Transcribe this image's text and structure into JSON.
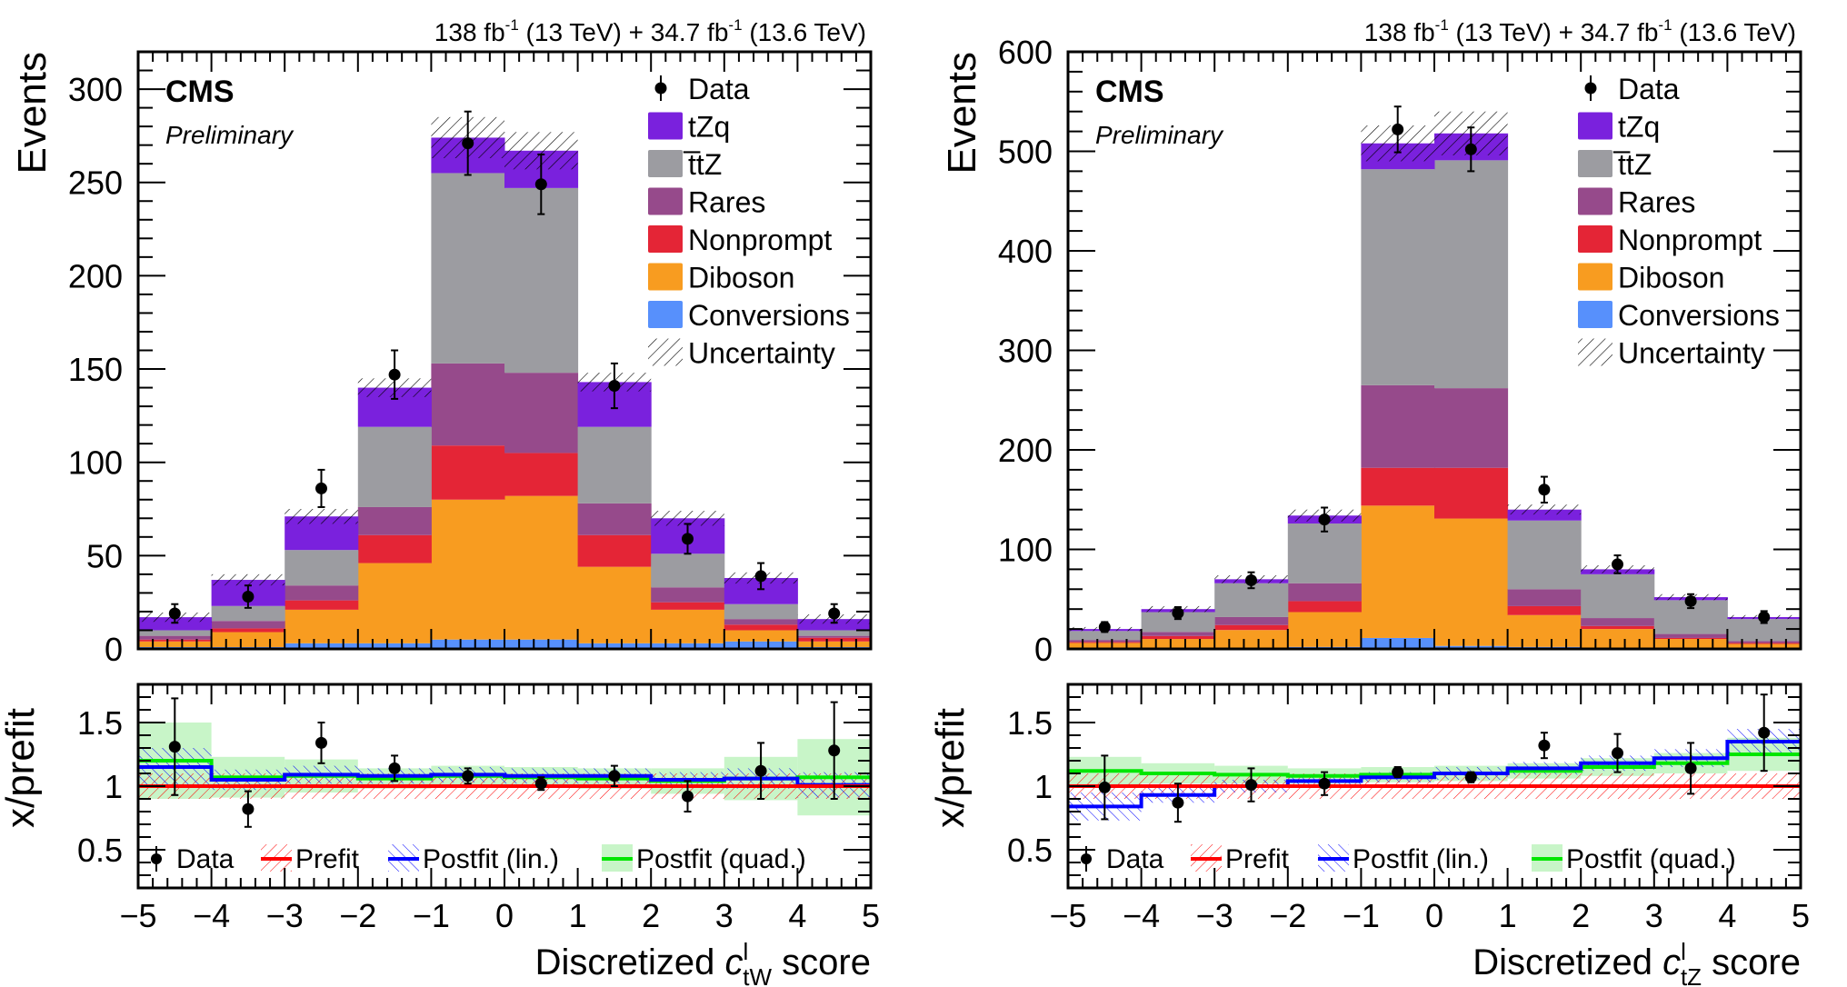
{
  "chart_data": [
    {
      "type": "bar",
      "stacked": true,
      "lumi_label": "138 fb^-1 (13 TeV) + 34.7 fb^-1 (13.6 TeV)",
      "lumi_parts": [
        "138 fb",
        "-1",
        " (13 TeV) + 34.7 fb",
        "-1",
        " (13.6 TeV)"
      ],
      "experiment": "CMS",
      "status": "Preliminary",
      "ylabel": "Events",
      "ratio_ylabel": "x/prefit",
      "xlabel_prefix": "Discretized ",
      "xlabel_symbol": "c",
      "xlabel_sup": "l",
      "xlabel_sub": "tW",
      "xlabel_suffix": " score",
      "xlabel": "Discretized c^l_tW score",
      "xlim": [
        -5,
        5
      ],
      "x_ticks": [
        "−5",
        "−4",
        "−3",
        "−2",
        "−1",
        "0",
        "1",
        "2",
        "3",
        "4",
        "5"
      ],
      "ylim": [
        0,
        320
      ],
      "y_ticks": [
        0,
        50,
        100,
        150,
        200,
        250,
        300
      ],
      "y_minor_step": 10,
      "ratio_ylim": [
        0.2,
        1.8
      ],
      "ratio_y_ticks": [
        "0.5",
        "1",
        "1.5"
      ],
      "bin_edges": [
        -5,
        -4,
        -3,
        -2,
        -1,
        0,
        1,
        2,
        3,
        4,
        5
      ],
      "series": [
        {
          "name": "Conversions",
          "color": "#5790fc",
          "values": [
            1,
            1,
            3,
            3,
            5,
            5,
            3,
            3,
            4,
            1
          ]
        },
        {
          "name": "Diboson",
          "color": "#f89c20",
          "values": [
            3,
            8,
            18,
            43,
            75,
            77,
            41,
            18,
            6,
            3
          ]
        },
        {
          "name": "Nonprompt",
          "color": "#e42536",
          "values": [
            1,
            2,
            5,
            15,
            29,
            23,
            17,
            4,
            3,
            2
          ]
        },
        {
          "name": "Rares",
          "color": "#964a8b",
          "values": [
            2,
            4,
            8,
            15,
            44,
            43,
            17,
            8,
            3,
            1
          ]
        },
        {
          "name": "t̅tZ",
          "color": "#9c9ca1",
          "values": [
            3,
            8,
            19,
            43,
            102,
            99,
            41,
            18,
            8,
            3
          ]
        },
        {
          "name": "tZq",
          "color": "#7a21dd",
          "values": [
            7,
            14,
            18,
            21,
            19,
            20,
            24,
            19,
            14,
            6
          ]
        }
      ],
      "uncertainty": [
        2.5,
        3,
        4,
        5,
        11,
        10,
        5,
        4,
        3,
        2.5
      ],
      "data": [
        19,
        28,
        86,
        147,
        271,
        249,
        141,
        59,
        39,
        19
      ],
      "data_err": [
        5,
        6,
        10,
        13,
        17,
        16,
        12,
        8,
        7,
        5
      ],
      "legend": [
        "Data",
        "tZq",
        "t̅tZ",
        "Rares",
        "Nonprompt",
        "Diboson",
        "Conversions",
        "Uncertainty"
      ],
      "legend_position": "top-right",
      "ratio": {
        "data": [
          1.31,
          0.82,
          1.34,
          1.14,
          1.08,
          1.02,
          1.08,
          0.92,
          1.12,
          1.28
        ],
        "data_err": [
          0.38,
          0.14,
          0.16,
          0.1,
          0.06,
          0.05,
          0.08,
          0.12,
          0.22,
          0.38
        ],
        "prefit": [
          1,
          1,
          1,
          1,
          1,
          1,
          1,
          1,
          1,
          1
        ],
        "prefit_unc": [
          0.1,
          0.1,
          0.1,
          0.1,
          0.1,
          0.1,
          0.1,
          0.1,
          0.1,
          0.1
        ],
        "postfit_lin": [
          1.15,
          1.05,
          1.09,
          1.08,
          1.09,
          1.08,
          1.08,
          1.05,
          1.06,
          1.01
        ],
        "postfit_lin_unc": [
          0.15,
          0.08,
          0.07,
          0.06,
          0.06,
          0.06,
          0.06,
          0.06,
          0.08,
          0.1
        ],
        "postfit_quad": [
          1.2,
          1.07,
          1.08,
          1.06,
          1.08,
          1.07,
          1.06,
          1.04,
          1.06,
          1.07
        ],
        "postfit_quad_unc": [
          0.3,
          0.16,
          0.13,
          0.08,
          0.08,
          0.08,
          0.08,
          0.1,
          0.17,
          0.3
        ],
        "legend": [
          "Data",
          "Prefit",
          "Postfit (lin.)",
          "Postfit (quad.)"
        ],
        "legend_position": "bottom"
      }
    },
    {
      "type": "bar",
      "stacked": true,
      "lumi_label": "138 fb^-1 (13 TeV) + 34.7 fb^-1 (13.6 TeV)",
      "lumi_parts": [
        "138 fb",
        "-1",
        " (13 TeV) + 34.7 fb",
        "-1",
        " (13.6 TeV)"
      ],
      "experiment": "CMS",
      "status": "Preliminary",
      "ylabel": "Events",
      "ratio_ylabel": "x/prefit",
      "xlabel_prefix": "Discretized ",
      "xlabel_symbol": "c",
      "xlabel_sup": "l",
      "xlabel_sub": "tZ",
      "xlabel_suffix": " score",
      "xlabel": "Discretized c^l_tZ score",
      "xlim": [
        -5,
        5
      ],
      "x_ticks": [
        "−5",
        "−4",
        "−3",
        "−2",
        "−1",
        "0",
        "1",
        "2",
        "3",
        "4",
        "5"
      ],
      "ylim": [
        0,
        600
      ],
      "y_ticks": [
        0,
        100,
        200,
        300,
        400,
        500,
        600
      ],
      "y_minor_step": 20,
      "ratio_ylim": [
        0.2,
        1.8
      ],
      "ratio_y_ticks": [
        "0.5",
        "1",
        "1.5"
      ],
      "bin_edges": [
        -5,
        -4,
        -3,
        -2,
        -1,
        0,
        1,
        2,
        3,
        4,
        5
      ],
      "series": [
        {
          "name": "Conversions",
          "color": "#5790fc",
          "values": [
            1,
            1,
            1,
            2,
            11,
            3,
            2,
            1,
            1,
            1
          ]
        },
        {
          "name": "Diboson",
          "color": "#f89c20",
          "values": [
            5,
            9,
            18,
            35,
            133,
            128,
            32,
            19,
            9,
            4
          ]
        },
        {
          "name": "Nonprompt",
          "color": "#e42536",
          "values": [
            1,
            3,
            5,
            11,
            38,
            51,
            9,
            3,
            1,
            1
          ]
        },
        {
          "name": "Rares",
          "color": "#964a8b",
          "values": [
            2,
            4,
            8,
            18,
            83,
            80,
            17,
            8,
            4,
            2
          ]
        },
        {
          "name": "t̅tZ",
          "color": "#9c9ca1",
          "values": [
            9,
            20,
            34,
            60,
            217,
            229,
            69,
            44,
            34,
            22
          ]
        },
        {
          "name": "tZq",
          "color": "#7a21dd",
          "values": [
            2,
            3,
            4,
            8,
            26,
            27,
            11,
            5,
            3,
            2
          ]
        }
      ],
      "uncertainty": [
        2,
        3,
        4,
        6,
        18,
        22,
        5,
        4,
        3,
        2
      ],
      "data": [
        22,
        36,
        69,
        130,
        522,
        502,
        160,
        85,
        48,
        32
      ],
      "data_err": [
        5,
        6,
        8,
        12,
        23,
        22,
        13,
        9,
        7,
        6
      ],
      "legend": [
        "Data",
        "tZq",
        "t̅tZ",
        "Rares",
        "Nonprompt",
        "Diboson",
        "Conversions",
        "Uncertainty"
      ],
      "legend_position": "top-right",
      "ratio": {
        "data": [
          0.99,
          0.87,
          1.01,
          1.02,
          1.11,
          1.07,
          1.32,
          1.26,
          1.14,
          1.42
        ],
        "data_err": [
          0.25,
          0.15,
          0.13,
          0.09,
          0.04,
          0.04,
          0.1,
          0.15,
          0.2,
          0.3
        ],
        "prefit": [
          1,
          1,
          1,
          1,
          1,
          1,
          1,
          1,
          1,
          1
        ],
        "prefit_unc": [
          0.1,
          0.1,
          0.1,
          0.1,
          0.1,
          0.1,
          0.1,
          0.1,
          0.1,
          0.1
        ],
        "postfit_lin": [
          0.84,
          0.93,
          1.0,
          1.04,
          1.07,
          1.1,
          1.14,
          1.18,
          1.22,
          1.35
        ],
        "postfit_lin_unc": [
          0.11,
          0.06,
          0.05,
          0.05,
          0.04,
          0.05,
          0.05,
          0.06,
          0.07,
          0.1
        ],
        "postfit_quad": [
          1.12,
          1.1,
          1.09,
          1.08,
          1.09,
          1.1,
          1.12,
          1.15,
          1.18,
          1.25
        ],
        "postfit_quad_unc": [
          0.11,
          0.08,
          0.07,
          0.06,
          0.06,
          0.06,
          0.06,
          0.07,
          0.08,
          0.13
        ],
        "legend": [
          "Data",
          "Prefit",
          "Postfit (lin.)",
          "Postfit (quad.)"
        ],
        "legend_position": "bottom"
      }
    }
  ],
  "colors": {
    "prefit": "#ff0000",
    "postfit_lin": "#0000ff",
    "postfit_quad": "#00e600",
    "postfit_quad_band": "#c8f5c8",
    "data": "#000000"
  }
}
